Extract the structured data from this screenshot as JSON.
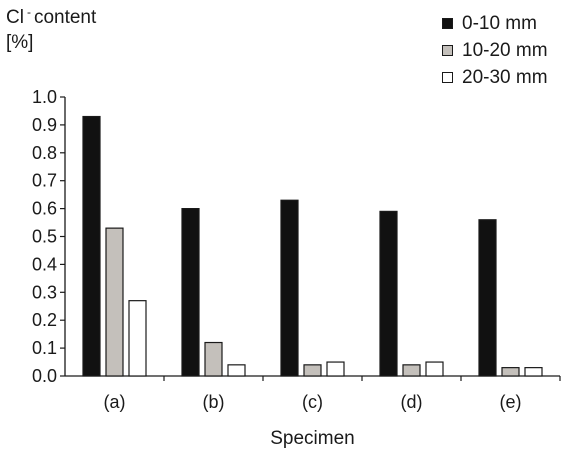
{
  "chart_data": {
    "type": "bar",
    "ylabel_line1": "Cl",
    "ylabel_sup": "-",
    "ylabel_line1_rest": "content",
    "ylabel_line2": "[%]",
    "xlabel": "Specimen",
    "ylim": [
      0,
      1.0
    ],
    "yticks": [
      "0.0",
      "0.1",
      "0.2",
      "0.3",
      "0.4",
      "0.5",
      "0.6",
      "0.7",
      "0.8",
      "0.9",
      "1.0"
    ],
    "categories": [
      "(a)",
      "(b)",
      "(c)",
      "(d)",
      "(e)"
    ],
    "series": [
      {
        "name": "0-10 mm",
        "color": "#111111",
        "values": [
          0.93,
          0.6,
          0.63,
          0.59,
          0.56
        ]
      },
      {
        "name": "10-20 mm",
        "color": "#c4c0bb",
        "values": [
          0.53,
          0.12,
          0.04,
          0.04,
          0.03
        ]
      },
      {
        "name": "20-30 mm",
        "color": "#ffffff",
        "values": [
          0.27,
          0.04,
          0.05,
          0.05,
          0.03
        ]
      }
    ],
    "grid": false,
    "legend_position": "top-right"
  }
}
